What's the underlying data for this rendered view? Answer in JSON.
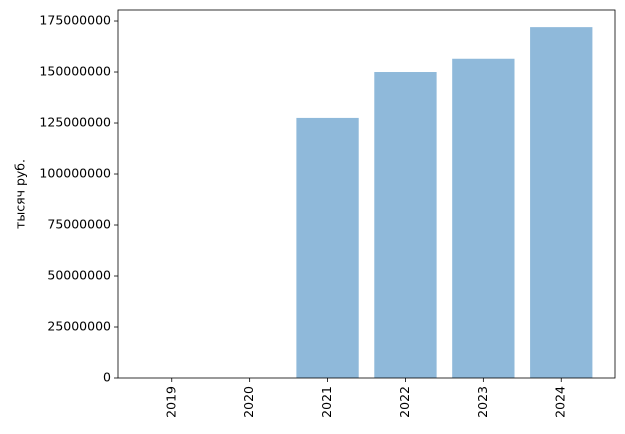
{
  "chart_data": {
    "type": "bar",
    "y_label": "тысяч руб.",
    "categories": [
      "2019",
      "2020",
      "2021",
      "2022",
      "2023",
      "2024"
    ],
    "values": [
      0,
      0,
      127500000,
      150000000,
      156500000,
      172000000
    ],
    "color": "#8fb9da",
    "ylim": [
      0,
      180400000
    ],
    "yticks": [
      0,
      25000000,
      50000000,
      75000000,
      100000000,
      125000000,
      150000000,
      175000000
    ],
    "grid": false
  }
}
